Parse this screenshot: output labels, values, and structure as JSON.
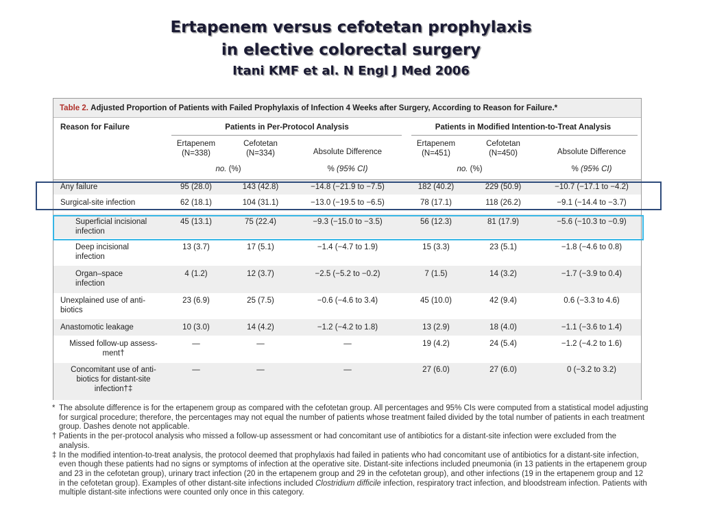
{
  "slide": {
    "title_line1": "Ertapenem versus cefotetan prophylaxis",
    "title_line2": "in elective colorectal surgery",
    "citation": "Itani KMF et al. N Engl J Med 2006"
  },
  "table": {
    "label": "Table 2.",
    "caption": "Adjusted Proportion of Patients with Failed Prophylaxis of Infection 4 Weeks after Surgery, According to Reason for Failure.*",
    "col_reason": "Reason for Failure",
    "group_pp": "Patients in Per-Protocol Analysis",
    "group_mitt": "Patients in Modified Intention-to-Treat Analysis",
    "pp_ert_l1": "Ertapenem",
    "pp_ert_l2": "(N=338)",
    "pp_cef_l1": "Cefotetan",
    "pp_cef_l2": "(N=334)",
    "pp_diff": "Absolute Difference",
    "mitt_ert_l1": "Ertapenem",
    "mitt_ert_l2": "(N=451)",
    "mitt_cef_l1": "Cefotetan",
    "mitt_cef_l2": "(N=450)",
    "mitt_diff": "Absolute Difference",
    "unit_no": "no.",
    "unit_pct": "(%)",
    "unit_diff_pct": "%",
    "unit_ci": "(95% CI)",
    "rows": [
      {
        "label": "Any failure",
        "pp_ert": "95 (28.0)",
        "pp_cef": "143 (42.8)",
        "pp_diff": "−14.8 (−21.9 to −7.5)",
        "mitt_ert": "182 (40.2)",
        "mitt_cef": "229 (50.9)",
        "mitt_diff": "−10.7 (−17.1 to −4.2)"
      },
      {
        "label": "Surgical-site infection",
        "pp_ert": "62 (18.1)",
        "pp_cef": "104 (31.1)",
        "pp_diff": "−13.0 (−19.5 to −6.5)",
        "mitt_ert": "78 (17.1)",
        "mitt_cef": "118 (26.2)",
        "mitt_diff": "−9.1 (−14.4 to −3.7)"
      },
      {
        "label": "Superficial incisional infection",
        "pp_ert": "45 (13.1)",
        "pp_cef": "75 (22.4)",
        "pp_diff": "−9.3 (−15.0 to −3.5)",
        "mitt_ert": "56 (12.3)",
        "mitt_cef": "81 (17.9)",
        "mitt_diff": "−5.6 (−10.3 to −0.9)"
      },
      {
        "label": "Deep incisional infection",
        "pp_ert": "13 (3.7)",
        "pp_cef": "17 (5.1)",
        "pp_diff": "−1.4 (−4.7 to 1.9)",
        "mitt_ert": "15 (3.3)",
        "mitt_cef": "23 (5.1)",
        "mitt_diff": "−1.8 (−4.6 to 0.8)"
      },
      {
        "label": "Organ–space infection",
        "pp_ert": "4 (1.2)",
        "pp_cef": "12 (3.7)",
        "pp_diff": "−2.5 (−5.2 to −0.2)",
        "mitt_ert": "7 (1.5)",
        "mitt_cef": "14 (3.2)",
        "mitt_diff": "−1.7 (−3.9 to 0.4)"
      },
      {
        "label": "Unexplained use of anti-biotics",
        "pp_ert": "23 (6.9)",
        "pp_cef": "25 (7.5)",
        "pp_diff": "−0.6 (−4.6 to 3.4)",
        "mitt_ert": "45 (10.0)",
        "mitt_cef": "42 (9.4)",
        "mitt_diff": "0.6 (−3.3 to 4.6)"
      },
      {
        "label": "Anastomotic leakage",
        "pp_ert": "10 (3.0)",
        "pp_cef": "14 (4.2)",
        "pp_diff": "−1.2 (−4.2 to 1.8)",
        "mitt_ert": "13 (2.9)",
        "mitt_cef": "18 (4.0)",
        "mitt_diff": "−1.1 (−3.6 to 1.4)"
      },
      {
        "label": "Missed follow-up assess-ment†",
        "pp_ert": "—",
        "pp_cef": "—",
        "pp_diff": "—",
        "mitt_ert": "19 (4.2)",
        "mitt_cef": "24 (5.4)",
        "mitt_diff": "−1.2 (−4.2 to 1.6)"
      },
      {
        "label": "Concomitant use of anti-biotics for distant-site infection†‡",
        "pp_ert": "—",
        "pp_cef": "—",
        "pp_diff": "—",
        "mitt_ert": "27 (6.0)",
        "mitt_cef": "27 (6.0)",
        "mitt_diff": "0 (−3.2 to 3.2)"
      }
    ]
  },
  "footnotes": [
    {
      "mark": "*",
      "text": "The absolute difference is for the ertapenem group as compared with the cefotetan group. All percentages and 95% CIs were computed from a statistical model adjusting for surgical procedure; therefore, the percentages may not equal the number of patients whose treatment failed divided by the total number of patients in each treatment group. Dashes denote not applicable."
    },
    {
      "mark": "†",
      "text": "Patients in the per-protocol analysis who missed a follow-up assessment or had concomitant use of antibiotics for a distant-site infection were excluded from the analysis."
    },
    {
      "mark": "‡",
      "text_before": "In the modified intention-to-treat analysis, the protocol deemed that prophylaxis had failed in patients who had concomitant use of antibiotics for a distant-site infection, even though these patients had no signs or symptoms of infection at the operative site. Distant-site infections included pneumonia (in 13 patients in the ertapenem group and 23 in the cefotetan group), urinary tract infection (20 in the ertapenem group and 29 in the cefotetan group), and other infections (19 in the ertapenem group and 12 in the cefotetan group). Examples of other distant-site infections included ",
      "text_italic": "Clostridium difficile",
      "text_after": " infection, respiratory tract infection, and bloodstream infection. Patients with multiple distant-site infections were counted only once in this category."
    }
  ],
  "colors": {
    "highlight_navy": "#2d4a7a",
    "highlight_cyan": "#35b5e5",
    "table_label_red": "#b0302a"
  }
}
